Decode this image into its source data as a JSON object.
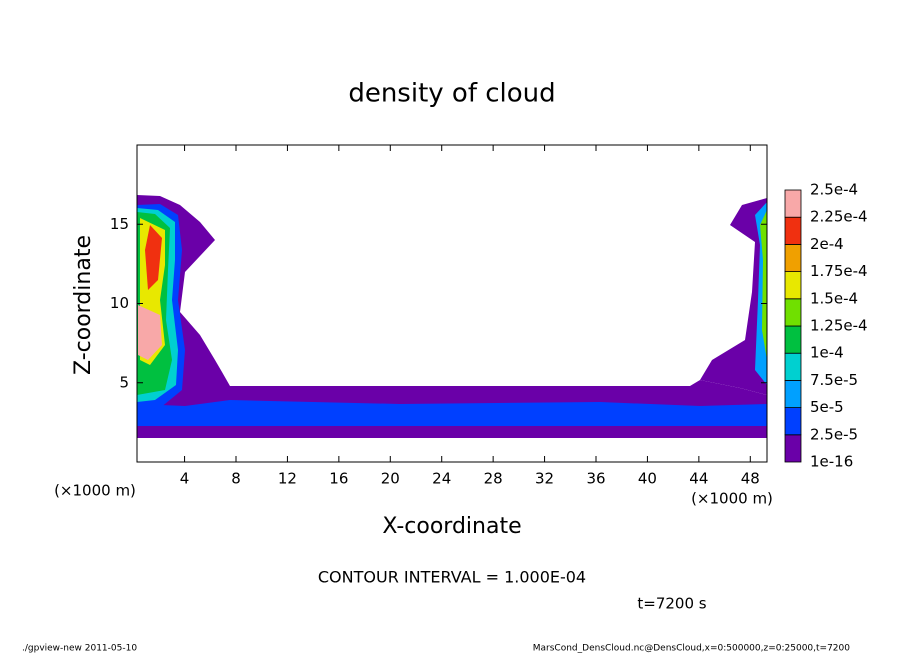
{
  "chart_data": {
    "type": "contour",
    "title": "density of cloud",
    "x_label": "X-coordinate",
    "y_label": "Z-coordinate",
    "x_unit": "(×1000 m)",
    "y_unit": "(×1000 m)",
    "xlim": [
      0.3,
      49.3
    ],
    "ylim": [
      0,
      20
    ],
    "xticks": [
      4,
      8,
      12,
      16,
      20,
      24,
      28,
      32,
      36,
      40,
      44,
      48
    ],
    "yticks": [
      5,
      10,
      15
    ],
    "colorbar": {
      "levels": [
        {
          "value": 1e-16,
          "label": "1e-16"
        },
        {
          "value": 2.5e-05,
          "label": "2.5e-5"
        },
        {
          "value": 5e-05,
          "label": "5e-5"
        },
        {
          "value": 7.5e-05,
          "label": "7.5e-5"
        },
        {
          "value": 0.0001,
          "label": "1e-4"
        },
        {
          "value": 0.000125,
          "label": "1.25e-4"
        },
        {
          "value": 0.00015,
          "label": "1.5e-4"
        },
        {
          "value": 0.000175,
          "label": "1.75e-4"
        },
        {
          "value": 0.0002,
          "label": "2e-4"
        },
        {
          "value": 0.000225,
          "label": "2.25e-4"
        },
        {
          "value": 0.00025,
          "label": "2.5e-4"
        }
      ],
      "colors": [
        "#6a00a8",
        "#0040ff",
        "#00a0ff",
        "#00d0d0",
        "#00c040",
        "#70e000",
        "#e8e800",
        "#f0a000",
        "#f03010",
        "#f8a8a8"
      ]
    },
    "annotations": {
      "contour_interval": "CONTOUR INTERVAL = 1.000E-04",
      "time": "t=7200 s",
      "footer_left": "./gpview-new  2011-05-10",
      "footer_right": "MarsCond_DensCloud.nc@DensCloud,x=0:500000,z=0:25000,t=7200"
    }
  }
}
